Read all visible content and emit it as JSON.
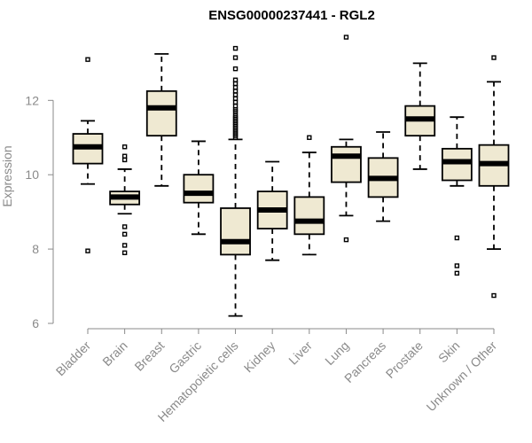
{
  "chart_data": {
    "type": "boxplot",
    "title": "ENSG00000237441 - RGL2",
    "xlabel": "",
    "ylabel": "Expression",
    "ylim": [
      6,
      13.7
    ],
    "yticks": [
      6,
      8,
      10,
      12
    ],
    "colors": {
      "box_fill": "#efe9d2",
      "box_stroke": "#000000",
      "axis": "#8a8a8a"
    },
    "categories": [
      "Bladder",
      "Brain",
      "Breast",
      "Gastric",
      "Hematopoietic cells",
      "Kidney",
      "Liver",
      "Lung",
      "Pancreas",
      "Prostate",
      "Skin",
      "Unknown / Other"
    ],
    "boxes": [
      {
        "category": "Bladder",
        "whisker_low": 9.75,
        "q1": 10.3,
        "median": 10.75,
        "q3": 11.1,
        "whisker_high": 11.45,
        "outliers": [
          13.1,
          7.95
        ]
      },
      {
        "category": "Brain",
        "whisker_low": 8.95,
        "q1": 9.2,
        "median": 9.4,
        "q3": 9.55,
        "whisker_high": 10.15,
        "outliers": [
          10.75,
          10.5,
          10.4,
          8.6,
          8.4,
          8.1,
          7.9
        ]
      },
      {
        "category": "Breast",
        "whisker_low": 9.7,
        "q1": 11.05,
        "median": 11.8,
        "q3": 12.25,
        "whisker_high": 13.25,
        "outliers": []
      },
      {
        "category": "Gastric",
        "whisker_low": 8.4,
        "q1": 9.25,
        "median": 9.5,
        "q3": 10.0,
        "whisker_high": 10.9,
        "outliers": []
      },
      {
        "category": "Hematopoietic cells",
        "whisker_low": 6.2,
        "q1": 7.85,
        "median": 8.2,
        "q3": 9.1,
        "whisker_high": 10.95,
        "outliers": [
          13.4,
          13.15,
          12.85,
          12.55,
          12.45,
          12.35,
          12.25,
          12.15,
          12.05,
          11.95,
          11.85,
          11.75,
          11.7,
          11.6,
          11.55,
          11.5,
          11.45,
          11.4,
          11.35,
          11.3,
          11.25,
          11.2,
          11.15,
          11.1,
          11.05,
          11.0
        ]
      },
      {
        "category": "Kidney",
        "whisker_low": 7.7,
        "q1": 8.55,
        "median": 9.05,
        "q3": 9.55,
        "whisker_high": 10.35,
        "outliers": []
      },
      {
        "category": "Liver",
        "whisker_low": 7.85,
        "q1": 8.4,
        "median": 8.75,
        "q3": 9.4,
        "whisker_high": 10.6,
        "outliers": [
          11.0
        ]
      },
      {
        "category": "Lung",
        "whisker_low": 8.9,
        "q1": 9.8,
        "median": 10.5,
        "q3": 10.75,
        "whisker_high": 10.95,
        "outliers": [
          13.7,
          8.25
        ]
      },
      {
        "category": "Pancreas",
        "whisker_low": 8.75,
        "q1": 9.4,
        "median": 9.9,
        "q3": 10.45,
        "whisker_high": 11.15,
        "outliers": []
      },
      {
        "category": "Prostate",
        "whisker_low": 10.15,
        "q1": 11.05,
        "median": 11.5,
        "q3": 11.85,
        "whisker_high": 13.0,
        "outliers": []
      },
      {
        "category": "Skin",
        "whisker_low": 9.7,
        "q1": 9.85,
        "median": 10.35,
        "q3": 10.7,
        "whisker_high": 11.55,
        "outliers": [
          8.3,
          7.55,
          7.35
        ]
      },
      {
        "category": "Unknown / Other",
        "whisker_low": 8.0,
        "q1": 9.7,
        "median": 10.3,
        "q3": 10.8,
        "whisker_high": 12.5,
        "outliers": [
          13.15,
          6.75
        ]
      }
    ]
  }
}
